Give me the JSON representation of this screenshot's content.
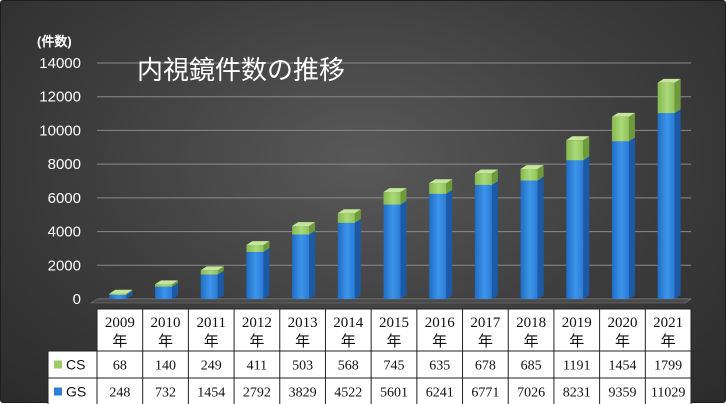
{
  "chart_data": {
    "type": "bar",
    "stacked": true,
    "title": "内視鏡件数の推移",
    "unit_label": "(件数)",
    "ylim": [
      0,
      14000
    ],
    "yticks": [
      0,
      2000,
      4000,
      6000,
      8000,
      10000,
      12000,
      14000
    ],
    "grid": true,
    "categories": [
      "2009",
      "2010",
      "2011",
      "2012",
      "2013",
      "2014",
      "2015",
      "2016",
      "2017",
      "2018",
      "2019",
      "2020",
      "2021"
    ],
    "category_suffix": "年",
    "series": [
      {
        "name": "GS",
        "color": "#2e7fd6",
        "values": [
          248,
          732,
          1454,
          2792,
          3829,
          4522,
          5601,
          6241,
          6771,
          7026,
          8231,
          9359,
          11029
        ]
      },
      {
        "name": "CS",
        "color": "#9ccc65",
        "values": [
          68,
          140,
          249,
          411,
          503,
          568,
          745,
          635,
          678,
          685,
          1191,
          1454,
          1799
        ]
      }
    ],
    "legend_placement": "data-table"
  }
}
